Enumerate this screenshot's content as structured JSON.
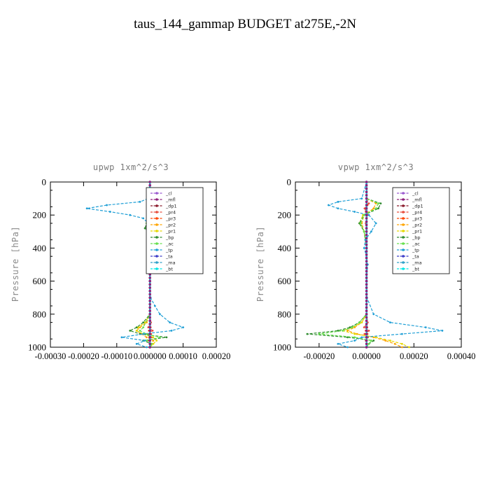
{
  "title": "taus_144_gammap  BUDGET at275E,-2N",
  "chart_data": [
    {
      "type": "line",
      "title": "upwp   1xm^2/s^3",
      "ylabel": "Pressure [hPa]",
      "xlabel": "",
      "xlim": [
        -0.0003,
        0.0002
      ],
      "ylim": [
        1000,
        0
      ],
      "xticks": [
        -0.0003,
        -0.0002,
        -0.0001,
        0.0,
        0.0001,
        0.0002
      ],
      "xtick_labels": [
        "-0.00030",
        "-0.00020",
        "-0.00010",
        "0.000000",
        "0.00010",
        "0.00020"
      ],
      "yticks": [
        0,
        200,
        400,
        600,
        800,
        1000
      ],
      "ytick_labels": [
        "0",
        "200",
        "400",
        "600",
        "800",
        "1000"
      ],
      "legend_position": "top-right",
      "series": [
        {
          "name": "_cl",
          "color": "#9b59d0",
          "y": [
            0,
            200,
            400,
            600,
            800,
            1000
          ],
          "x": [
            0,
            0,
            0,
            0,
            0,
            0
          ]
        },
        {
          "name": "_mfl",
          "color": "#8e1f7a",
          "y": [
            0,
            200,
            400,
            600,
            800,
            1000
          ],
          "x": [
            0,
            0,
            0,
            0,
            0,
            0
          ]
        },
        {
          "name": "_dp1",
          "color": "#8b1a2b",
          "y": [
            0,
            200,
            400,
            600,
            800,
            1000
          ],
          "x": [
            0,
            0,
            0,
            0,
            0,
            0
          ]
        },
        {
          "name": "_pr4",
          "color": "#e74c3c",
          "y": [
            0,
            100,
            120,
            140,
            160,
            180,
            200,
            220,
            250,
            300,
            400,
            600,
            800,
            850,
            880,
            900,
            920,
            940,
            960,
            980,
            1000
          ],
          "x": [
            0,
            0,
            -5e-06,
            1e-05,
            -8e-06,
            5e-06,
            -5e-06,
            3e-06,
            0,
            0,
            0,
            0,
            0,
            3e-06,
            -5e-06,
            8e-06,
            -8e-06,
            6e-06,
            -4e-06,
            2e-06,
            0
          ]
        },
        {
          "name": "_pr3",
          "color": "#ff4500",
          "y": [
            0,
            100,
            140,
            180,
            200,
            250,
            300,
            400,
            600,
            800,
            880,
            900,
            920,
            940,
            960,
            1000
          ],
          "x": [
            0,
            0,
            3e-06,
            -3e-06,
            2e-06,
            0,
            0,
            0,
            0,
            0,
            2e-06,
            -3e-06,
            3e-06,
            -2e-06,
            1e-06,
            0
          ]
        },
        {
          "name": "_pr2",
          "color": "#ffa500",
          "y": [
            0,
            100,
            130,
            160,
            200,
            250,
            300,
            400,
            600,
            800,
            850,
            880,
            900,
            920,
            940,
            960,
            980,
            1000
          ],
          "x": [
            0,
            0,
            2e-05,
            3e-05,
            1e-05,
            -5e-06,
            -2e-06,
            0,
            0,
            0,
            -1e-05,
            -3e-05,
            -4e-05,
            -2.5e-05,
            -1e-05,
            1e-05,
            5e-06,
            0
          ]
        },
        {
          "name": "_pr1",
          "color": "#e6d800",
          "y": [
            0,
            100,
            130,
            160,
            200,
            250,
            300,
            400,
            600,
            800,
            850,
            880,
            900,
            920,
            940,
            960,
            980,
            1000
          ],
          "x": [
            0,
            0,
            2e-05,
            3.5e-05,
            1.5e-05,
            -5e-06,
            0,
            0,
            0,
            0,
            -1.5e-05,
            -3.5e-05,
            -4e-05,
            -2e-05,
            1e-05,
            2e-05,
            1e-05,
            0
          ]
        },
        {
          "name": "_bp",
          "color": "#2e8b2e",
          "y": [
            0,
            100,
            130,
            160,
            200,
            250,
            280,
            300,
            400,
            600,
            800,
            850,
            880,
            900,
            920,
            940,
            960,
            980,
            1000
          ],
          "x": [
            0,
            0,
            3e-05,
            5e-05,
            2e-05,
            -1e-05,
            -1.5e-05,
            -5e-06,
            0,
            0,
            0,
            -2e-05,
            -4e-05,
            -6e-05,
            -3e-05,
            5e-05,
            -2e-05,
            5e-06,
            0
          ]
        },
        {
          "name": "_ac",
          "color": "#66e04d",
          "y": [
            0,
            100,
            130,
            160,
            200,
            250,
            300,
            400,
            600,
            800,
            880,
            900,
            920,
            940,
            960,
            980,
            1000
          ],
          "x": [
            0,
            0,
            2e-05,
            4.5e-05,
            2e-05,
            -1e-05,
            -5e-06,
            0,
            0,
            0,
            -2e-05,
            -3e-05,
            -1e-05,
            3e-05,
            -1e-05,
            5e-06,
            0
          ]
        },
        {
          "name": "_tp",
          "color": "#1f9fd6",
          "y": [
            0,
            100,
            120,
            140,
            160,
            180,
            200,
            220,
            250,
            300,
            350,
            400,
            450,
            500,
            600,
            700,
            750,
            800,
            850,
            880,
            900,
            920,
            940,
            960,
            980,
            1000
          ],
          "x": [
            0,
            -5e-06,
            -3e-05,
            -0.00013,
            -0.00019,
            -0.00012,
            -6e-05,
            -2e-05,
            -5e-06,
            5e-06,
            0,
            -5e-06,
            0,
            3e-06,
            0,
            2e-06,
            1.5e-05,
            3e-05,
            6e-05,
            0.0001,
            6.5e-05,
            -2e-05,
            -8.5e-05,
            -1.5e-05,
            -4e-05,
            -1e-05
          ]
        },
        {
          "name": "_ta",
          "color": "#3c3cc8",
          "y": [
            0,
            200,
            400,
            600,
            800,
            1000
          ],
          "x": [
            0,
            0,
            0,
            0,
            0,
            0
          ]
        },
        {
          "name": "_ma",
          "color": "#2fa0c8",
          "y": [
            0,
            200,
            400,
            600,
            800,
            1000
          ],
          "x": [
            0,
            0,
            0,
            0,
            0,
            0
          ]
        },
        {
          "name": "_bt",
          "color": "#00e5e5",
          "y": [
            0,
            200,
            400,
            600,
            800,
            1000
          ],
          "x": [
            0,
            0,
            0,
            0,
            0,
            0
          ]
        }
      ]
    },
    {
      "type": "line",
      "title": "vpwp   1xm^2/s^3",
      "ylabel": "Pressure [hPa]",
      "xlabel": "",
      "xlim": [
        -0.0003,
        0.0004
      ],
      "ylim": [
        1000,
        0
      ],
      "xticks": [
        -0.0002,
        0.0,
        0.0002,
        0.0004
      ],
      "xtick_labels": [
        "-0.00020",
        "0.00000",
        "0.00020",
        "0.00040"
      ],
      "yticks": [
        0,
        200,
        400,
        600,
        800,
        1000
      ],
      "ytick_labels": [
        "0",
        "200",
        "400",
        "600",
        "800",
        "1000"
      ],
      "legend_position": "top-right",
      "series": [
        {
          "name": "_cl",
          "color": "#9b59d0",
          "y": [
            0,
            200,
            400,
            600,
            800,
            1000
          ],
          "x": [
            0,
            0,
            0,
            0,
            0,
            0
          ]
        },
        {
          "name": "_mfl",
          "color": "#8e1f7a",
          "y": [
            0,
            200,
            400,
            600,
            800,
            1000
          ],
          "x": [
            0,
            0,
            0,
            0,
            0,
            0
          ]
        },
        {
          "name": "_dp1",
          "color": "#8b1a2b",
          "y": [
            0,
            200,
            400,
            600,
            800,
            1000
          ],
          "x": [
            0,
            0,
            0,
            0,
            0,
            0
          ]
        },
        {
          "name": "_pr4",
          "color": "#e74c3c",
          "y": [
            0,
            100,
            130,
            160,
            200,
            250,
            300,
            400,
            600,
            800,
            850,
            880,
            900,
            920,
            940,
            960,
            1000
          ],
          "x": [
            0,
            0,
            1e-05,
            -8e-06,
            5e-06,
            -3e-06,
            0,
            0,
            0,
            0,
            5e-06,
            -1e-05,
            1e-05,
            -8e-06,
            6e-06,
            -3e-06,
            0
          ]
        },
        {
          "name": "_pr3",
          "color": "#ff4500",
          "y": [
            0,
            100,
            140,
            180,
            200,
            250,
            300,
            400,
            600,
            800,
            880,
            900,
            920,
            940,
            960,
            1000
          ],
          "x": [
            0,
            0,
            4e-06,
            -3e-06,
            2e-06,
            0,
            0,
            0,
            0,
            0,
            3e-06,
            -3e-06,
            4e-06,
            -2e-06,
            1e-06,
            0
          ]
        },
        {
          "name": "_pr2",
          "color": "#ffa500",
          "y": [
            0,
            100,
            130,
            160,
            200,
            250,
            300,
            400,
            600,
            800,
            850,
            880,
            900,
            920,
            940,
            960,
            980,
            1000
          ],
          "x": [
            0,
            0,
            4e-05,
            3e-05,
            -1e-05,
            -2e-05,
            -1e-05,
            0,
            0,
            0,
            -2e-05,
            -5e-05,
            -8e-05,
            -4e-05,
            3e-05,
            8e-05,
            0.00012,
            0.00015
          ]
        },
        {
          "name": "_pr1",
          "color": "#e6d800",
          "y": [
            0,
            100,
            130,
            160,
            200,
            250,
            300,
            400,
            600,
            800,
            850,
            880,
            900,
            920,
            940,
            960,
            980,
            1000
          ],
          "x": [
            0,
            0,
            5e-05,
            4e-05,
            -1.5e-05,
            -3e-05,
            -1e-05,
            0,
            0,
            0,
            -2e-05,
            -6e-05,
            -0.0001,
            -5e-05,
            4e-05,
            0.0001,
            0.00015,
            0.00018
          ]
        },
        {
          "name": "_bp",
          "color": "#2e8b2e",
          "y": [
            0,
            100,
            130,
            160,
            200,
            250,
            300,
            400,
            600,
            800,
            850,
            880,
            900,
            920,
            940,
            960,
            980,
            1000
          ],
          "x": [
            0,
            0,
            6e-05,
            5e-05,
            -1e-05,
            -3e-05,
            -1e-05,
            0,
            0,
            0,
            -3e-05,
            -7e-05,
            -0.00012,
            -0.00025,
            -8e-05,
            3e-05,
            1e-05,
            0
          ]
        },
        {
          "name": "_ac",
          "color": "#66e04d",
          "y": [
            0,
            100,
            130,
            160,
            200,
            250,
            300,
            400,
            600,
            800,
            850,
            880,
            900,
            920,
            940,
            960,
            980,
            1000
          ],
          "x": [
            0,
            0,
            5e-05,
            4e-05,
            -1e-05,
            -2.5e-05,
            -1e-05,
            0,
            0,
            0,
            -3e-05,
            -6e-05,
            -0.0001,
            -0.0002,
            -5e-05,
            2e-05,
            1e-05,
            0
          ]
        },
        {
          "name": "_tp",
          "color": "#1f9fd6",
          "y": [
            0,
            100,
            120,
            140,
            160,
            180,
            200,
            250,
            300,
            350,
            400,
            450,
            500,
            600,
            700,
            800,
            850,
            880,
            900,
            920,
            940,
            960,
            980,
            1000
          ],
          "x": [
            0,
            -2e-05,
            -0.00012,
            -0.00016,
            -0.00012,
            -5e-05,
            1e-05,
            4e-05,
            2e-05,
            -5e-06,
            -1e-05,
            0,
            5e-06,
            0,
            2e-06,
            3e-05,
            0.0001,
            0.00025,
            0.00032,
            0.00015,
            -2e-05,
            -5e-05,
            -0.00012,
            -8e-05
          ]
        },
        {
          "name": "_ta",
          "color": "#3c3cc8",
          "y": [
            0,
            200,
            400,
            600,
            800,
            1000
          ],
          "x": [
            0,
            0,
            0,
            0,
            0,
            0
          ]
        },
        {
          "name": "_ma",
          "color": "#2fa0c8",
          "y": [
            0,
            200,
            400,
            600,
            800,
            1000
          ],
          "x": [
            0,
            0,
            0,
            0,
            0,
            0
          ]
        },
        {
          "name": "_bt",
          "color": "#00e5e5",
          "y": [
            0,
            200,
            400,
            600,
            800,
            1000
          ],
          "x": [
            0,
            0,
            0,
            0,
            0,
            0
          ]
        }
      ]
    }
  ]
}
